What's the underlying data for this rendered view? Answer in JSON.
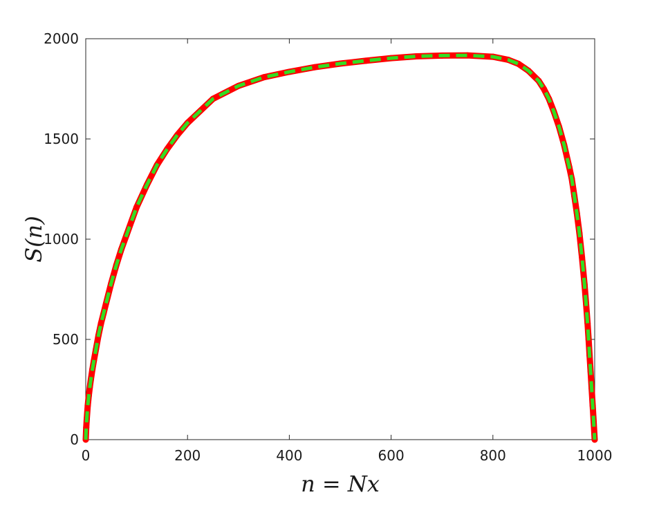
{
  "chart_data": {
    "type": "line",
    "title": "",
    "xlabel": "n = Nx",
    "ylabel": "S(n)",
    "xlim": [
      0,
      1000
    ],
    "ylim": [
      0,
      2000
    ],
    "x_ticks": [
      0,
      200,
      400,
      600,
      800,
      1000
    ],
    "y_ticks": [
      0,
      500,
      1000,
      1500,
      2000
    ],
    "x_tick_labels": [
      "0",
      "200",
      "400",
      "600",
      "800",
      "1000"
    ],
    "y_tick_labels": [
      "0",
      "500",
      "1000",
      "1500",
      "2000"
    ],
    "grid": false,
    "series": [
      {
        "color": "#ff0000",
        "style": "markers",
        "x": [
          0,
          1,
          2,
          4,
          6,
          8,
          10,
          13,
          16,
          20,
          25,
          30,
          35,
          40,
          50,
          60,
          70,
          80,
          90,
          100,
          120,
          140,
          160,
          180,
          200,
          250,
          300,
          350,
          400,
          450,
          500,
          550,
          600,
          650,
          700,
          750,
          800,
          830,
          850,
          870,
          890,
          900,
          910,
          920,
          930,
          940,
          950,
          955,
          960,
          965,
          970,
          975,
          980,
          983,
          986,
          988,
          990,
          992,
          994,
          996,
          998,
          1000
        ],
        "values": [
          0,
          60,
          105,
          170,
          220,
          262,
          300,
          350,
          395,
          450,
          520,
          580,
          630,
          680,
          780,
          870,
          950,
          1020,
          1090,
          1160,
          1270,
          1370,
          1450,
          1520,
          1580,
          1700,
          1765,
          1808,
          1835,
          1858,
          1876,
          1890,
          1903,
          1912,
          1916,
          1917,
          1910,
          1895,
          1875,
          1840,
          1790,
          1750,
          1700,
          1635,
          1560,
          1470,
          1360,
          1300,
          1215,
          1130,
          1030,
          910,
          775,
          680,
          580,
          500,
          420,
          340,
          255,
          170,
          90,
          0
        ]
      },
      {
        "color": "#33dd22",
        "style": "dashed",
        "x": [
          0,
          1,
          2,
          4,
          6,
          8,
          10,
          13,
          16,
          20,
          25,
          30,
          35,
          40,
          50,
          60,
          70,
          80,
          90,
          100,
          120,
          140,
          160,
          180,
          200,
          250,
          300,
          350,
          400,
          450,
          500,
          550,
          600,
          650,
          700,
          750,
          800,
          830,
          850,
          870,
          890,
          900,
          910,
          920,
          930,
          940,
          950,
          955,
          960,
          965,
          970,
          975,
          980,
          983,
          986,
          988,
          990,
          992,
          994,
          996,
          998,
          1000
        ],
        "values": [
          0,
          60,
          105,
          170,
          220,
          262,
          300,
          350,
          395,
          450,
          520,
          580,
          630,
          680,
          780,
          870,
          950,
          1020,
          1090,
          1160,
          1270,
          1370,
          1450,
          1520,
          1580,
          1700,
          1765,
          1808,
          1835,
          1858,
          1876,
          1890,
          1903,
          1912,
          1916,
          1917,
          1910,
          1895,
          1875,
          1840,
          1790,
          1750,
          1700,
          1635,
          1560,
          1470,
          1360,
          1300,
          1215,
          1130,
          1030,
          910,
          775,
          680,
          580,
          500,
          420,
          340,
          255,
          170,
          90,
          0
        ]
      }
    ]
  }
}
